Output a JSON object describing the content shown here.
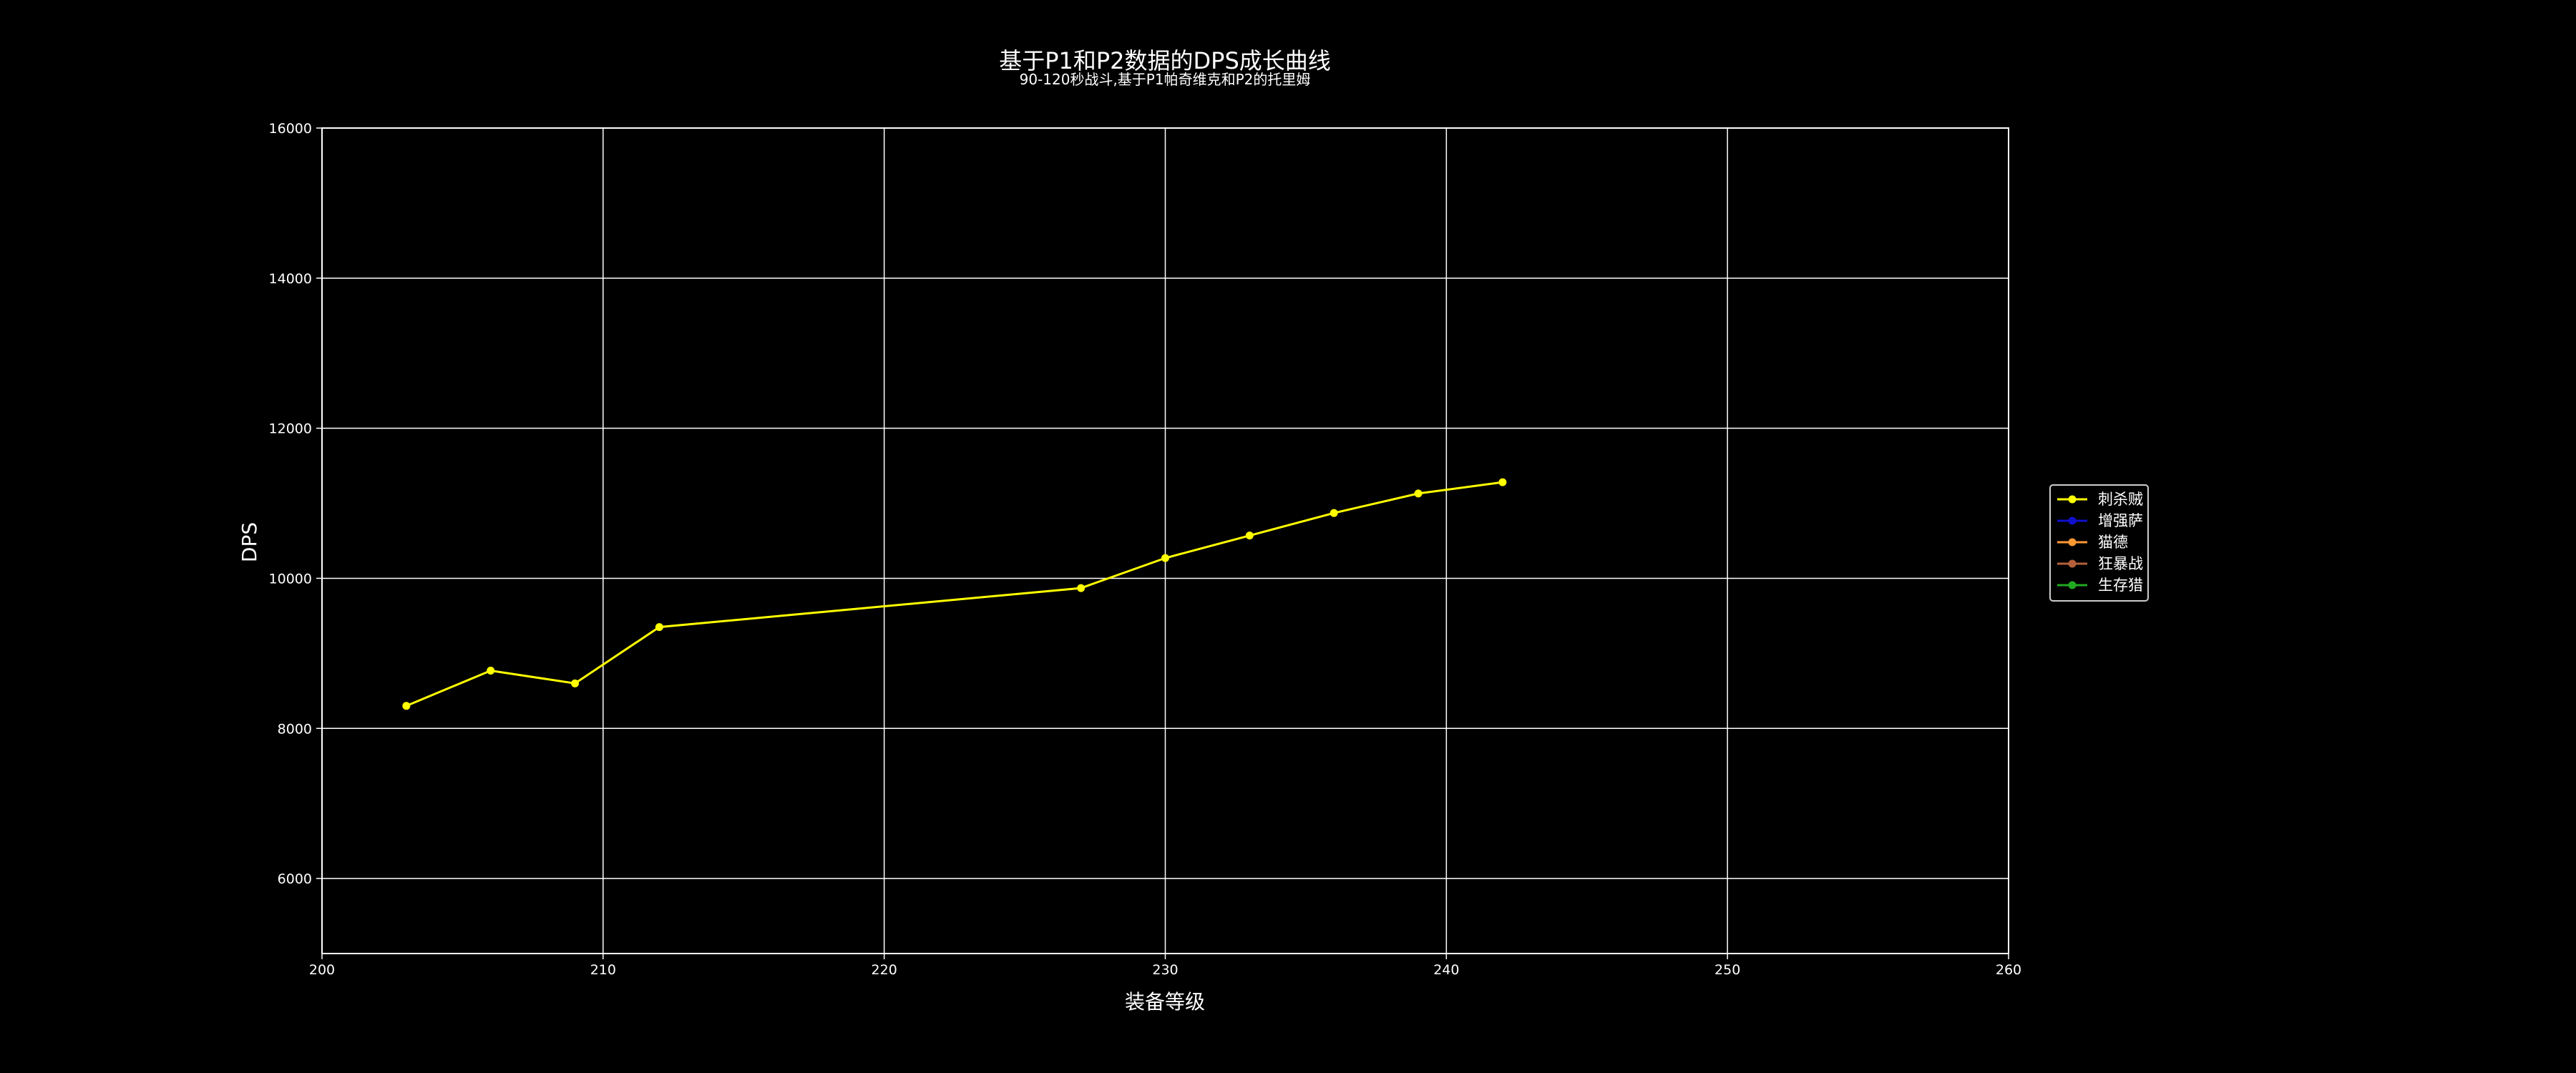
{
  "chart_data": {
    "type": "line",
    "title": "基于P1和P2数据的DPS成长曲线",
    "subtitle": "90-120秒战斗,基于P1帕奇维克和P2的托里姆",
    "xlabel": "装备等级",
    "ylabel": "DPS",
    "xlim": [
      200,
      260
    ],
    "ylim": [
      5000,
      16000
    ],
    "x_ticks": [
      200,
      210,
      220,
      230,
      240,
      250,
      260
    ],
    "y_ticks": [
      6000,
      8000,
      10000,
      12000,
      14000,
      16000
    ],
    "grid": true,
    "legend_position": "center-right",
    "series": [
      {
        "name": "刺杀贼",
        "color": "#ffff00",
        "x": [
          203,
          206,
          209,
          212,
          227,
          230,
          233,
          236,
          239,
          242
        ],
        "values": [
          8300,
          8770,
          8600,
          9350,
          9870,
          10270,
          10570,
          10870,
          11130,
          11280
        ]
      },
      {
        "name": "增强萨",
        "color": "#1010cc",
        "x": [],
        "values": []
      },
      {
        "name": "猫德",
        "color": "#ff9933",
        "x": [],
        "values": []
      },
      {
        "name": "狂暴战",
        "color": "#b5603a",
        "x": [],
        "values": []
      },
      {
        "name": "生存猎",
        "color": "#22aa22",
        "x": [],
        "values": []
      }
    ]
  }
}
